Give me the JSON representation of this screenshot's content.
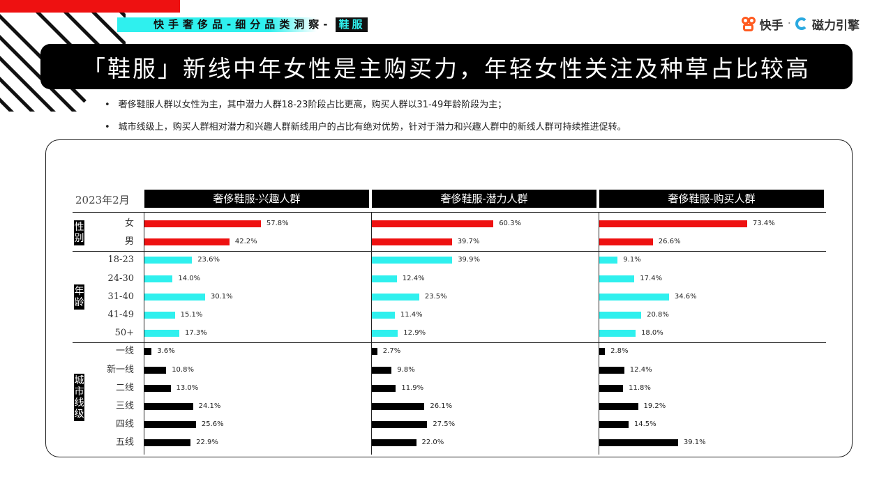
{
  "header": {
    "category_tag": "快手奢侈品-细分品类洞察-",
    "sub_tag": "鞋服",
    "brand_kuaishou": "快手",
    "brand_separator": "·",
    "brand_cili": "磁力引擎"
  },
  "title": "「鞋服」新线中年女性是主购买力，年轻女性关注及种草占比较高",
  "bullets": [
    "奢侈鞋服人群以女性为主，其中潜力人群18-23阶段占比更高，购买人群以31-49年龄阶段为主；",
    "城市线级上，购买人群相对潜力和兴趣人群新线用户的占比有绝对优势，针对于潜力和兴趣人群中的新线人群可持续推进促转。"
  ],
  "chart_data": {
    "type": "bar",
    "orientation": "horizontal",
    "date_label": "2023年2月",
    "columns": [
      "奢侈鞋服-兴趣人群",
      "奢侈鞋服-潜力人群",
      "奢侈鞋服-购买人群"
    ],
    "groups": [
      {
        "name": "性别",
        "color": "#ee1111",
        "categories": [
          "女",
          "男"
        ],
        "series": [
          {
            "name": "奢侈鞋服-兴趣人群",
            "values": [
              57.8,
              42.2
            ]
          },
          {
            "name": "奢侈鞋服-潜力人群",
            "values": [
              60.3,
              39.7
            ]
          },
          {
            "name": "奢侈鞋服-购买人群",
            "values": [
              73.4,
              26.6
            ]
          }
        ]
      },
      {
        "name": "年龄",
        "color": "#2ff0ee",
        "categories": [
          "18-23",
          "24-30",
          "31-40",
          "41-49",
          "50+"
        ],
        "series": [
          {
            "name": "奢侈鞋服-兴趣人群",
            "values": [
              23.6,
              14.0,
              30.1,
              15.1,
              17.3
            ]
          },
          {
            "name": "奢侈鞋服-潜力人群",
            "values": [
              39.9,
              12.4,
              23.5,
              11.4,
              12.9
            ]
          },
          {
            "name": "奢侈鞋服-购买人群",
            "values": [
              9.1,
              17.4,
              34.6,
              20.8,
              18.0
            ]
          }
        ]
      },
      {
        "name": "城市线级",
        "color": "#000000",
        "categories": [
          "一线",
          "新一线",
          "二线",
          "三线",
          "四线",
          "五线"
        ],
        "series": [
          {
            "name": "奢侈鞋服-兴趣人群",
            "values": [
              3.6,
              10.8,
              13.0,
              24.1,
              25.6,
              22.9
            ]
          },
          {
            "name": "奢侈鞋服-潜力人群",
            "values": [
              2.7,
              9.8,
              11.9,
              26.1,
              27.5,
              22.0
            ]
          },
          {
            "name": "奢侈鞋服-购买人群",
            "values": [
              2.8,
              12.4,
              11.8,
              19.2,
              14.5,
              39.1
            ]
          }
        ]
      }
    ],
    "value_suffix": "%",
    "xlim": [
      0,
      80
    ],
    "grid": false
  }
}
